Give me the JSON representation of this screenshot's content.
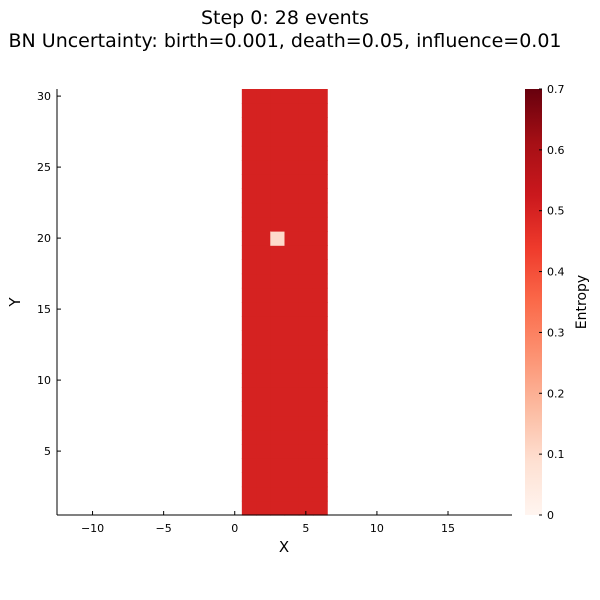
{
  "chart_data": {
    "type": "heatmap",
    "title": "Step 0: 28 events",
    "subtitle": "BN Uncertainty: birth=0.001, death=0.05, influence=0.01",
    "xlabel": "X",
    "ylabel": "Y",
    "xlim": [
      -12.5,
      19.5
    ],
    "ylim": [
      0.5,
      30.5
    ],
    "xticks": [
      -10,
      -5,
      0,
      5,
      10,
      15
    ],
    "yticks": [
      5,
      10,
      15,
      20,
      25,
      30
    ],
    "grid": false,
    "cells": {
      "x": [
        1,
        2,
        3,
        4,
        5,
        6
      ],
      "y_range": [
        1,
        30
      ],
      "default_value": 0.5,
      "exceptions": [
        {
          "x": 3,
          "y": 20,
          "value": 0.1
        }
      ]
    },
    "colorbar": {
      "label": "Entropy",
      "colormap": "Reds",
      "range": [
        0,
        0.7
      ],
      "ticks": [
        0,
        0.1,
        0.2,
        0.3,
        0.4,
        0.5,
        0.6,
        0.7
      ],
      "colors": [
        "#fff5f0",
        "#fee0d2",
        "#fcbba1",
        "#fc9272",
        "#fb6a4a",
        "#ef3b2c",
        "#cb181d",
        "#a50f15",
        "#67000d"
      ]
    }
  }
}
